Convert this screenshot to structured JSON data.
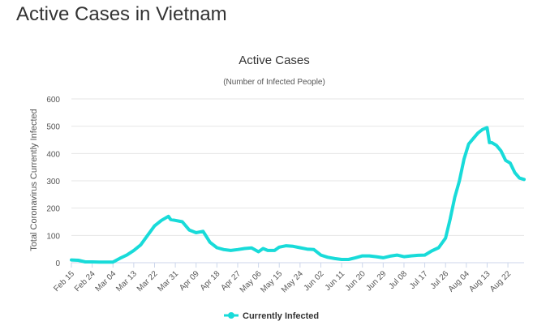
{
  "page": {
    "heading": "Active Cases in Vietnam"
  },
  "chart_data": {
    "type": "line",
    "title": "Active Cases",
    "subtitle": "(Number of Infected People)",
    "ylabel": "Total Coronavirus Currently Infected",
    "xlabel": "",
    "ylim": [
      0,
      600
    ],
    "yticks": [
      0,
      100,
      200,
      300,
      400,
      500,
      600
    ],
    "xtick_labels": [
      "Feb 15",
      "Feb 24",
      "Mar 04",
      "Mar 13",
      "Mar 22",
      "Mar 31",
      "Apr 09",
      "Apr 18",
      "Apr 27",
      "May 06",
      "May 15",
      "May 24",
      "Jun 02",
      "Jun 11",
      "Jun 20",
      "Jun 29",
      "Jul 08",
      "Jul 17",
      "Jul 26",
      "Aug 04",
      "Aug 13",
      "Aug 22"
    ],
    "grid": true,
    "legend_position": "bottom-center",
    "colors": {
      "series": "#18dbd9",
      "grid": "#e6e6e6",
      "axis": "#ccd6eb"
    },
    "series": [
      {
        "name": "Currently Infected",
        "x": [
          "Feb 15",
          "Feb 18",
          "Feb 21",
          "Feb 24",
          "Feb 27",
          "Mar 01",
          "Mar 04",
          "Mar 07",
          "Mar 10",
          "Mar 13",
          "Mar 16",
          "Mar 19",
          "Mar 22",
          "Mar 25",
          "Mar 28",
          "Mar 29",
          "Mar 31",
          "Apr 03",
          "Apr 06",
          "Apr 09",
          "Apr 12",
          "Apr 15",
          "Apr 18",
          "Apr 21",
          "Apr 24",
          "Apr 27",
          "Apr 30",
          "May 03",
          "May 06",
          "May 08",
          "May 10",
          "May 13",
          "May 15",
          "May 18",
          "May 21",
          "May 24",
          "May 27",
          "May 30",
          "Jun 02",
          "Jun 05",
          "Jun 08",
          "Jun 11",
          "Jun 14",
          "Jun 17",
          "Jun 20",
          "Jun 23",
          "Jun 26",
          "Jun 29",
          "Jul 02",
          "Jul 05",
          "Jul 08",
          "Jul 11",
          "Jul 14",
          "Jul 17",
          "Jul 20",
          "Jul 23",
          "Jul 26",
          "Jul 28",
          "Jul 30",
          "Aug 01",
          "Aug 03",
          "Aug 05",
          "Aug 07",
          "Aug 09",
          "Aug 11",
          "Aug 13",
          "Aug 14",
          "Aug 15",
          "Aug 17",
          "Aug 19",
          "Aug 21",
          "Aug 23",
          "Aug 25",
          "Aug 27",
          "Aug 29"
        ],
        "values": [
          10,
          9,
          3,
          3,
          2,
          2,
          2,
          16,
          28,
          45,
          65,
          100,
          135,
          155,
          170,
          158,
          155,
          150,
          120,
          110,
          115,
          75,
          55,
          48,
          45,
          48,
          52,
          54,
          40,
          52,
          45,
          45,
          57,
          62,
          60,
          55,
          50,
          48,
          28,
          20,
          15,
          12,
          12,
          18,
          25,
          25,
          22,
          18,
          24,
          28,
          22,
          25,
          27,
          28,
          43,
          55,
          90,
          160,
          240,
          300,
          380,
          435,
          455,
          475,
          488,
          495,
          440,
          440,
          430,
          410,
          375,
          365,
          330,
          310,
          305
        ]
      }
    ]
  }
}
